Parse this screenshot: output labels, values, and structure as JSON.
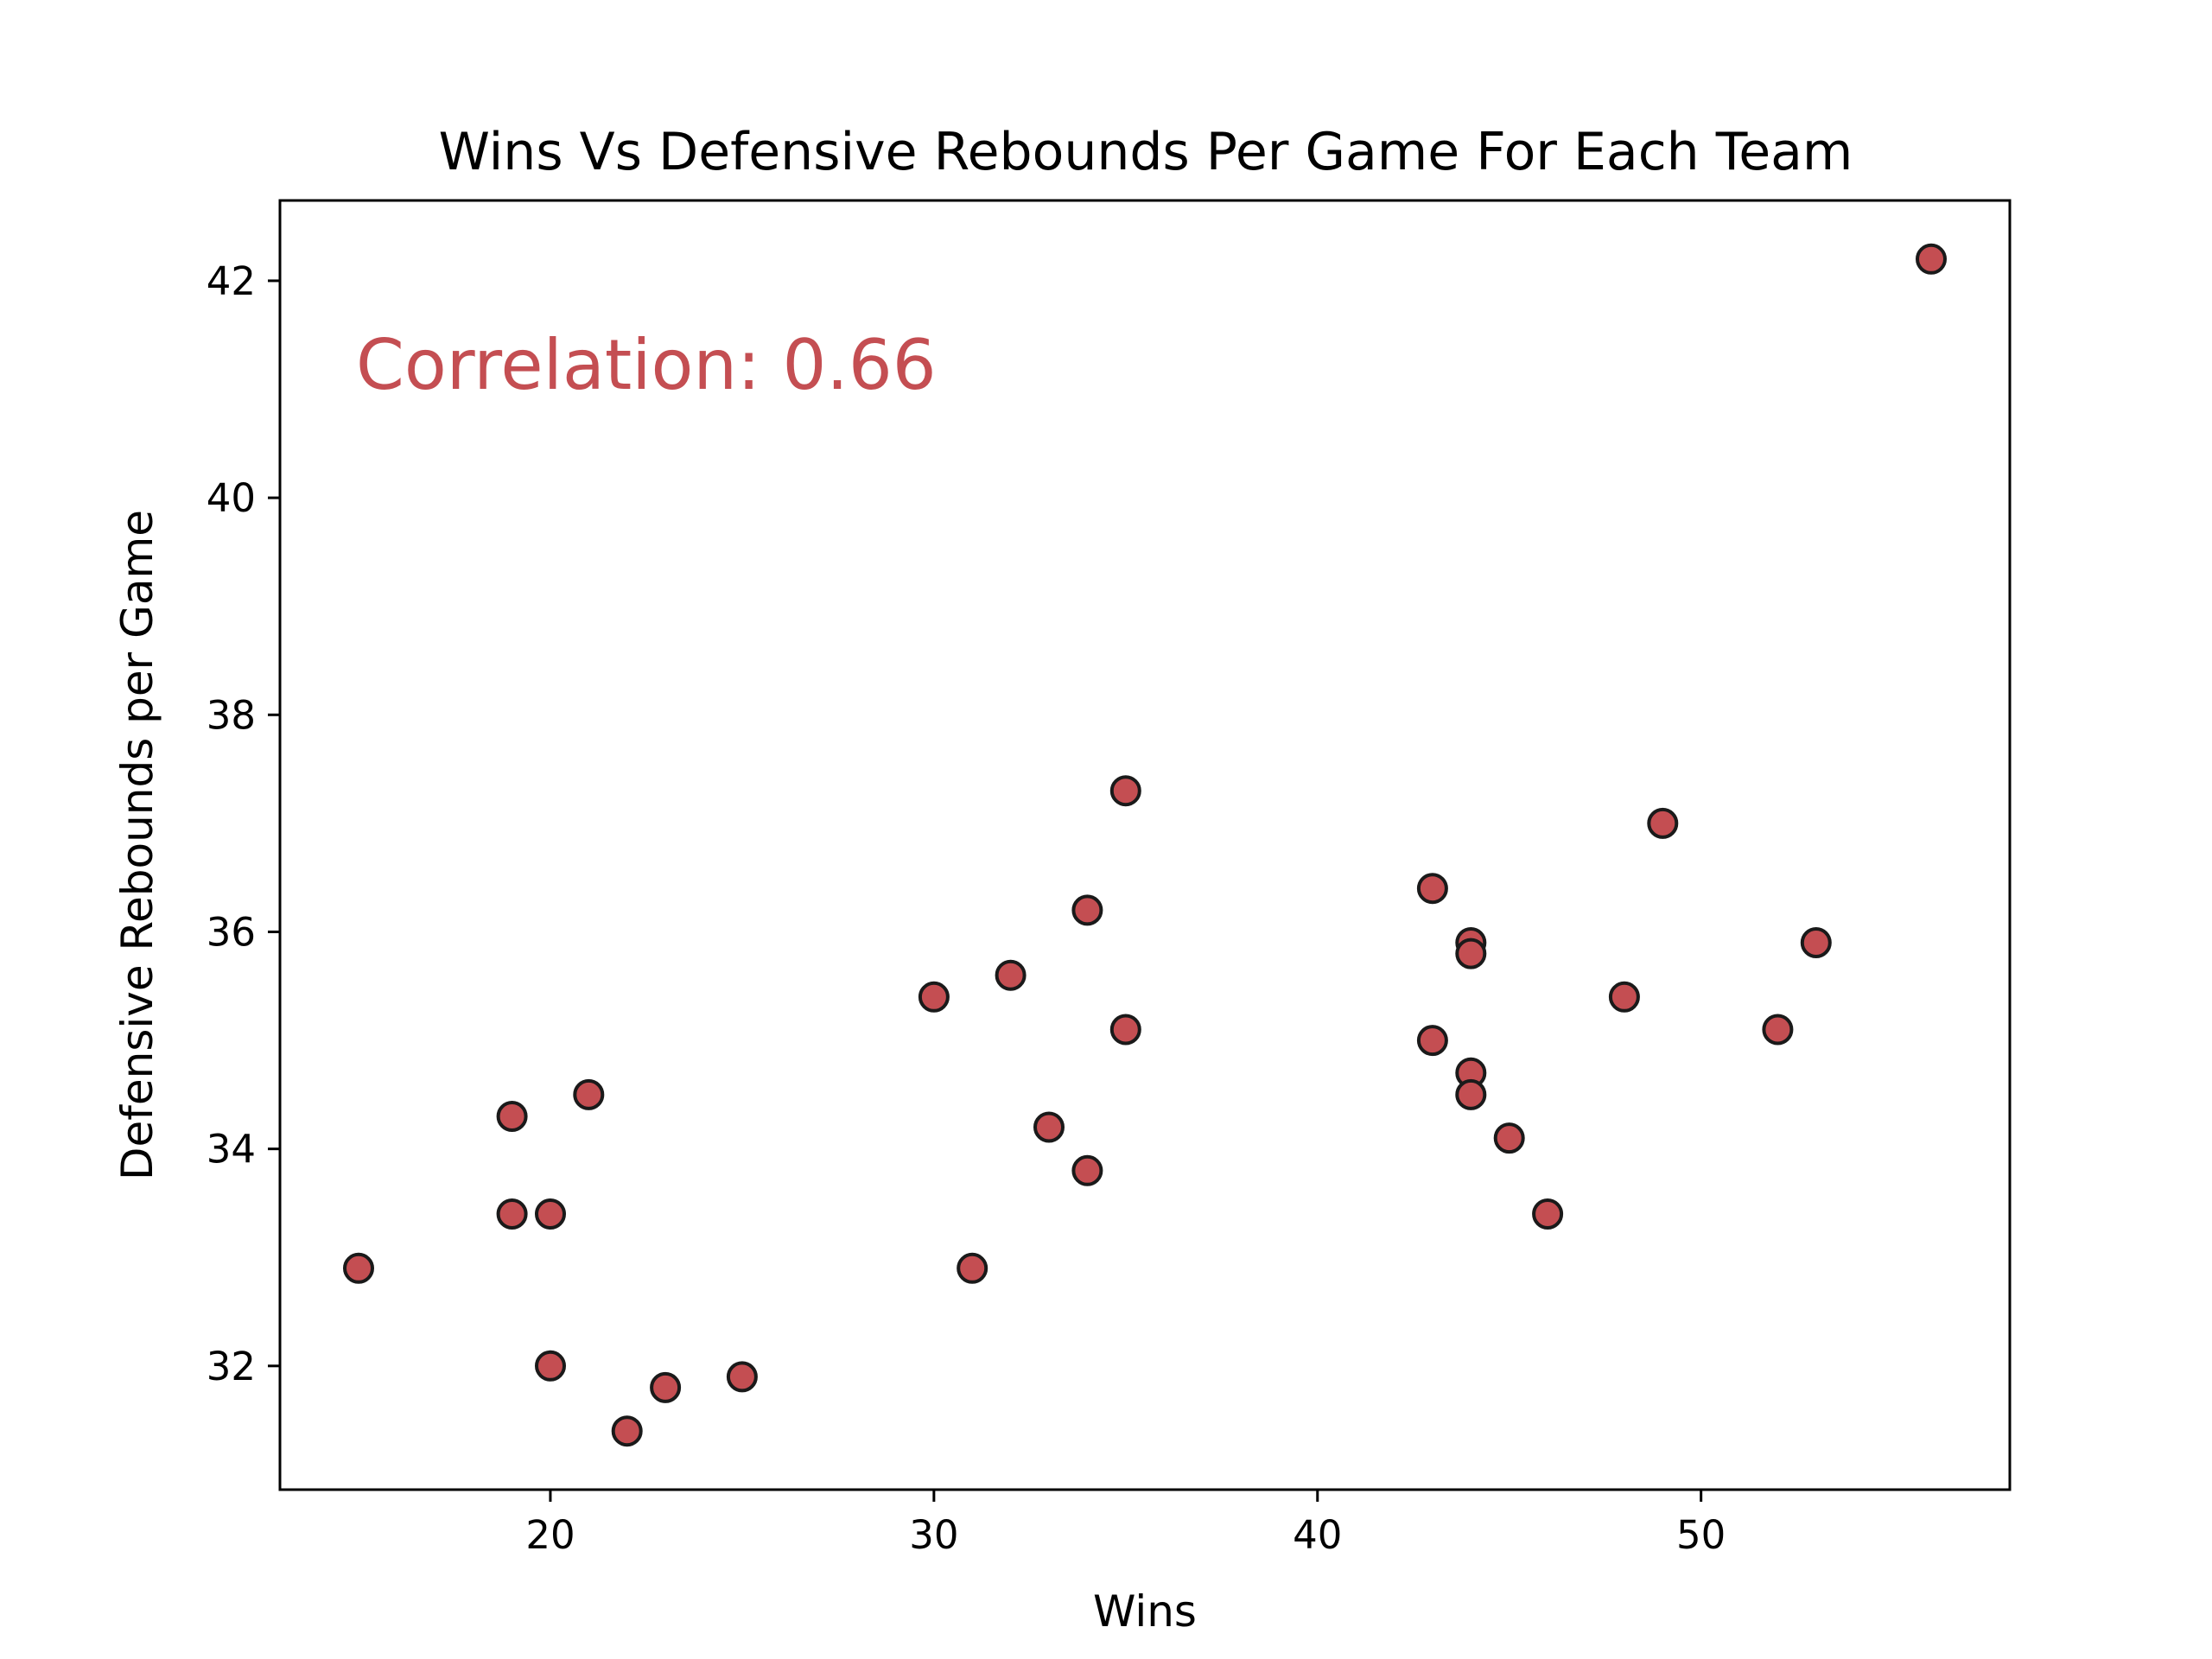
{
  "chart_data": {
    "type": "scatter",
    "title": "Wins Vs Defensive Rebounds Per Game For Each Team",
    "xlabel": "Wins",
    "ylabel": "Defensive Rebounds per Game",
    "xlim": [
      12.95,
      58.05
    ],
    "ylim": [
      30.86,
      42.74
    ],
    "xticks": [
      20,
      30,
      40,
      50
    ],
    "yticks": [
      32,
      34,
      36,
      38,
      40,
      42
    ],
    "grid": false,
    "legend": "none",
    "annotation": "Correlation: 0.66",
    "marker_color": "#c44e52",
    "marker_edge_color": "#1a1a1a",
    "annotation_color": "#c44e52",
    "points": [
      {
        "x": 15,
        "y": 32.9
      },
      {
        "x": 19,
        "y": 34.3
      },
      {
        "x": 19,
        "y": 33.4
      },
      {
        "x": 20,
        "y": 33.4
      },
      {
        "x": 20,
        "y": 32.0
      },
      {
        "x": 21,
        "y": 34.5
      },
      {
        "x": 22,
        "y": 31.4
      },
      {
        "x": 23,
        "y": 31.8
      },
      {
        "x": 25,
        "y": 31.9
      },
      {
        "x": 30,
        "y": 35.4
      },
      {
        "x": 31,
        "y": 32.9
      },
      {
        "x": 32,
        "y": 35.6
      },
      {
        "x": 33,
        "y": 34.2
      },
      {
        "x": 34,
        "y": 36.2
      },
      {
        "x": 34,
        "y": 33.8
      },
      {
        "x": 35,
        "y": 37.3
      },
      {
        "x": 35,
        "y": 35.1
      },
      {
        "x": 43,
        "y": 36.4
      },
      {
        "x": 43,
        "y": 35.0
      },
      {
        "x": 44,
        "y": 35.9
      },
      {
        "x": 44,
        "y": 35.8
      },
      {
        "x": 44,
        "y": 34.7
      },
      {
        "x": 44,
        "y": 34.5
      },
      {
        "x": 45,
        "y": 34.1
      },
      {
        "x": 46,
        "y": 33.4
      },
      {
        "x": 48,
        "y": 35.4
      },
      {
        "x": 49,
        "y": 37.0
      },
      {
        "x": 52,
        "y": 35.1
      },
      {
        "x": 53,
        "y": 35.9
      },
      {
        "x": 56,
        "y": 42.2
      }
    ]
  }
}
